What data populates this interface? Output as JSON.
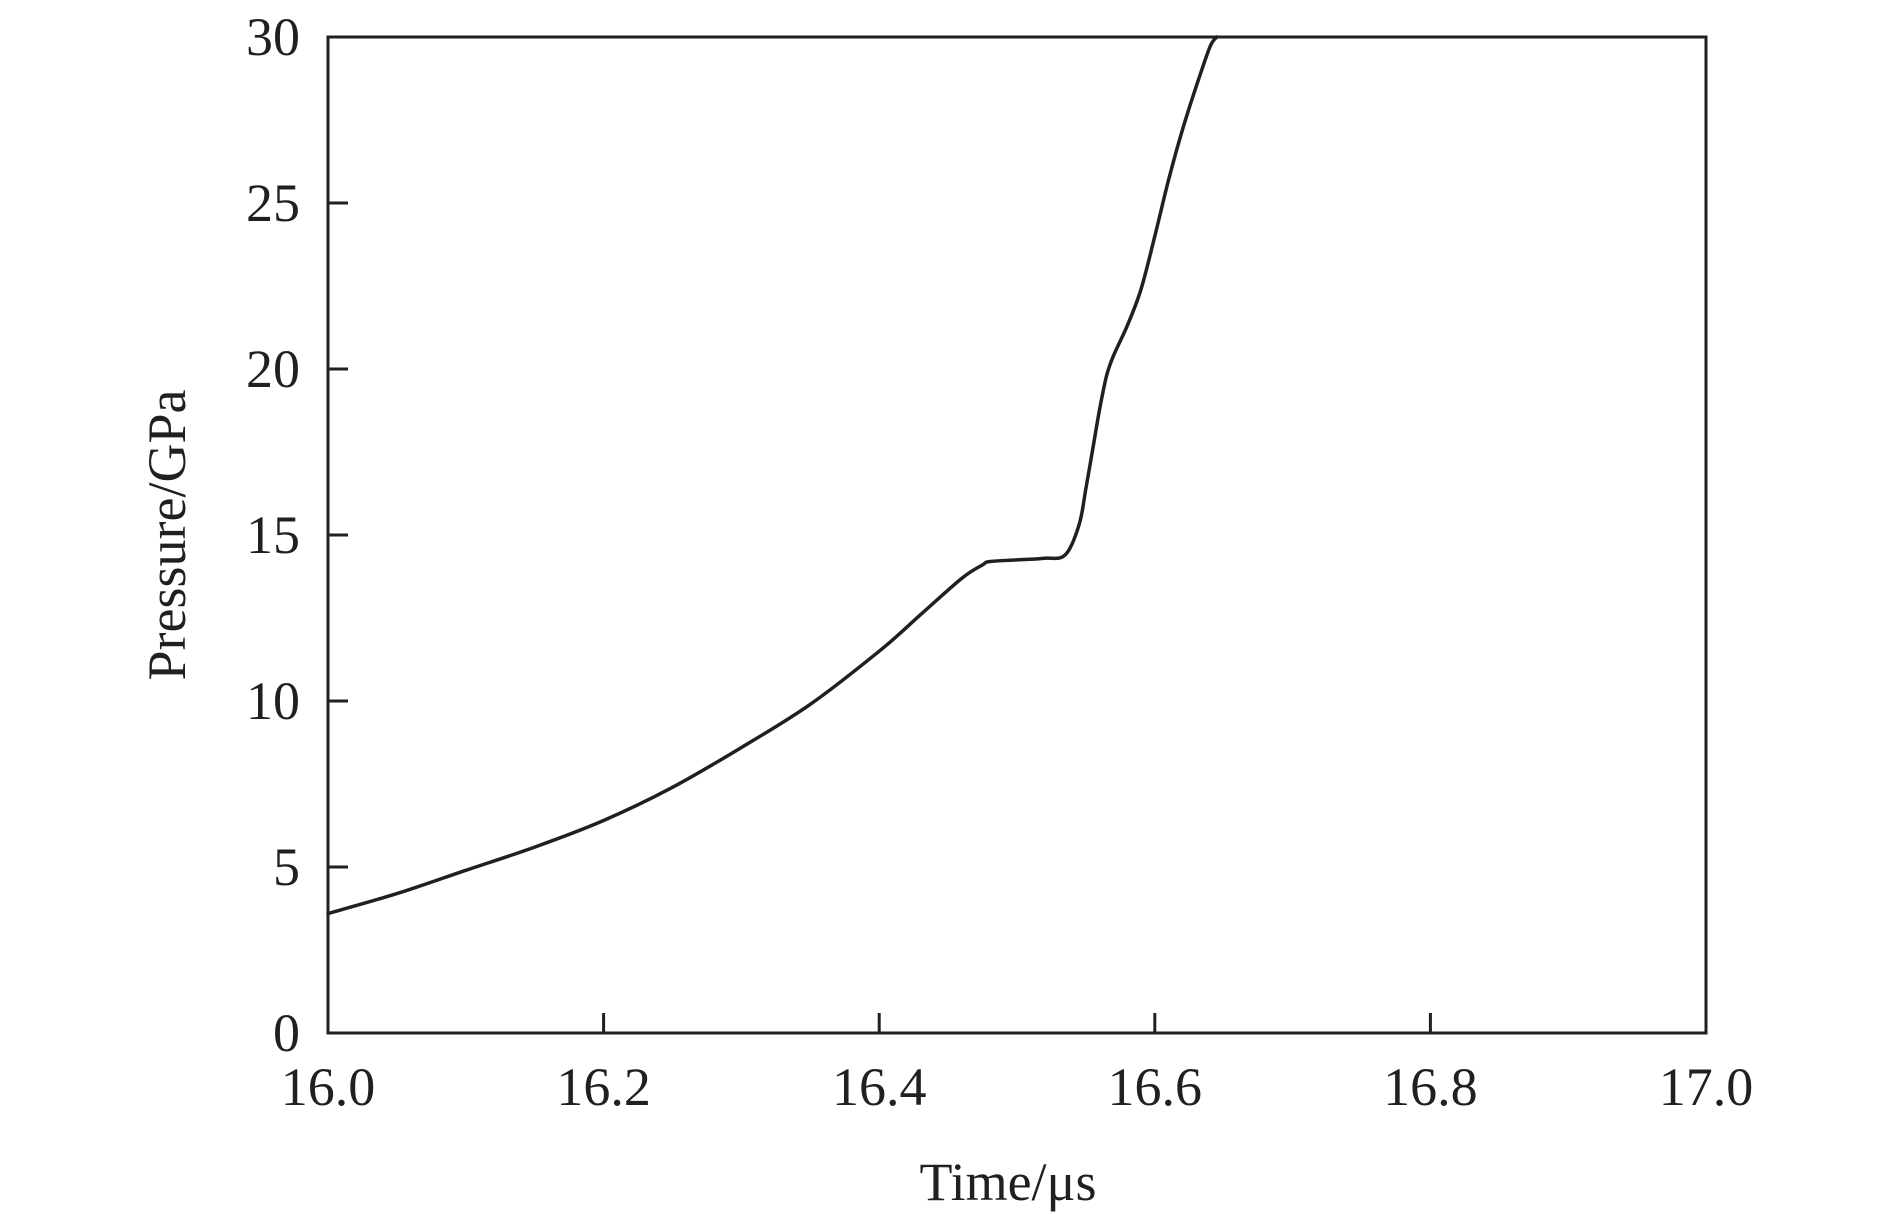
{
  "chart_data": {
    "type": "line",
    "title": "",
    "xlabel": "Time/μs",
    "ylabel": "Pressure/GPa",
    "xlim": [
      16.0,
      17.0
    ],
    "ylim": [
      0,
      30
    ],
    "x_ticks": [
      "16.0",
      "16.2",
      "16.4",
      "16.6",
      "16.8",
      "17.0"
    ],
    "y_ticks": [
      "0",
      "5",
      "10",
      "15",
      "20",
      "25",
      "30"
    ],
    "grid": false,
    "legend": "none",
    "line_color": "#231f20",
    "series": [
      {
        "x": [
          16.0,
          16.05,
          16.1,
          16.15,
          16.2,
          16.25,
          16.3,
          16.35,
          16.4,
          16.43,
          16.46,
          16.475,
          16.48,
          16.5,
          16.52,
          16.535,
          16.545,
          16.55,
          16.555,
          16.56,
          16.565,
          16.57,
          16.58,
          16.59,
          16.6,
          16.61,
          16.62,
          16.63,
          16.64,
          16.645
        ],
        "y": [
          3.6,
          4.2,
          4.9,
          5.6,
          6.4,
          7.4,
          8.6,
          9.9,
          11.5,
          12.6,
          13.7,
          14.1,
          14.2,
          14.25,
          14.3,
          14.4,
          15.3,
          16.4,
          17.6,
          18.8,
          19.8,
          20.4,
          21.3,
          22.4,
          24.0,
          25.7,
          27.2,
          28.5,
          29.7,
          30.0
        ]
      }
    ]
  }
}
